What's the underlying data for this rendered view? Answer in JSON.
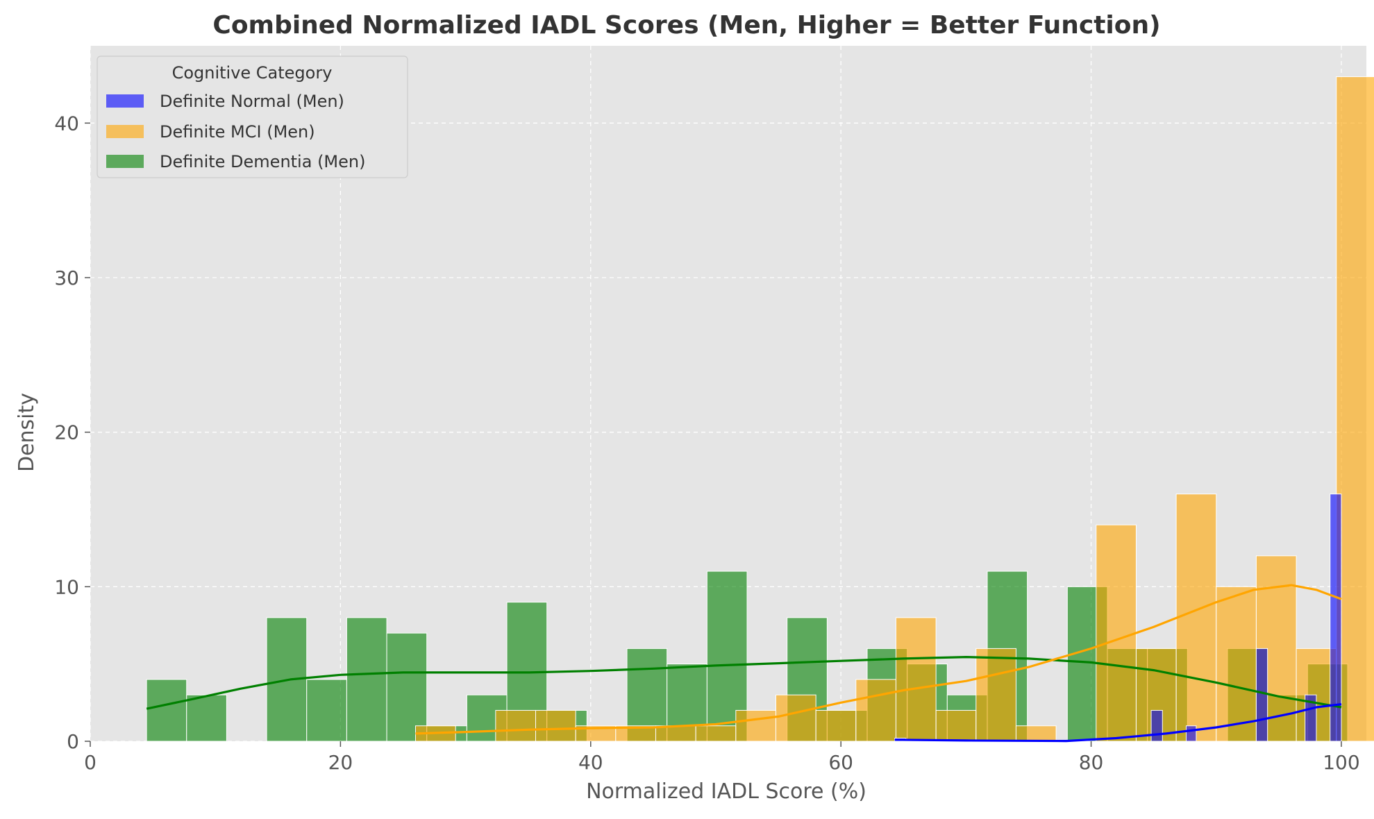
{
  "chart_data": {
    "type": "bar",
    "title": "Combined Normalized IADL Scores (Men, Higher = Better Function)",
    "xlabel": "Normalized IADL Score (%)",
    "ylabel": "Density",
    "xlim": [
      0,
      102
    ],
    "ylim": [
      0,
      45
    ],
    "xticks": [
      0,
      20,
      40,
      60,
      80,
      100
    ],
    "yticks": [
      0,
      10,
      20,
      30,
      40
    ],
    "grid": true,
    "legend": {
      "title": "Cognitive Category",
      "placement": "top-left"
    },
    "series": [
      {
        "name": "Definite Normal (Men)",
        "color": "#0000ff",
        "bins": [
          {
            "x0": 64.3,
            "x1": 65.2,
            "value": 0.2
          },
          {
            "x0": 84.8,
            "x1": 85.7,
            "value": 2
          },
          {
            "x0": 87.6,
            "x1": 88.4,
            "value": 1
          },
          {
            "x0": 93.2,
            "x1": 94.1,
            "value": 6
          },
          {
            "x0": 97.1,
            "x1": 98.0,
            "value": 3
          },
          {
            "x0": 99.1,
            "x1": 100.0,
            "value": 16
          }
        ],
        "kde": [
          [
            64.3,
            0.1
          ],
          [
            70,
            0.05
          ],
          [
            78,
            0.02
          ],
          [
            82,
            0.2
          ],
          [
            86,
            0.5
          ],
          [
            90,
            0.9
          ],
          [
            93,
            1.3
          ],
          [
            96,
            1.8
          ],
          [
            98,
            2.2
          ],
          [
            100,
            2.4
          ]
        ]
      },
      {
        "name": "Definite MCI (Men)",
        "color": "#ffa500",
        "bins": [
          {
            "x0": 26.0,
            "x1": 29.2,
            "value": 1
          },
          {
            "x0": 29.2,
            "x1": 32.4,
            "value": 0
          },
          {
            "x0": 32.4,
            "x1": 35.6,
            "value": 2
          },
          {
            "x0": 35.6,
            "x1": 38.8,
            "value": 2
          },
          {
            "x0": 38.8,
            "x1": 42.0,
            "value": 1
          },
          {
            "x0": 42.0,
            "x1": 45.2,
            "value": 1
          },
          {
            "x0": 45.2,
            "x1": 48.4,
            "value": 1
          },
          {
            "x0": 48.4,
            "x1": 51.6,
            "value": 1
          },
          {
            "x0": 51.6,
            "x1": 54.8,
            "value": 2
          },
          {
            "x0": 54.8,
            "x1": 58.0,
            "value": 3
          },
          {
            "x0": 58.0,
            "x1": 61.2,
            "value": 2
          },
          {
            "x0": 61.2,
            "x1": 64.4,
            "value": 4
          },
          {
            "x0": 64.4,
            "x1": 67.6,
            "value": 8
          },
          {
            "x0": 67.6,
            "x1": 70.8,
            "value": 2
          },
          {
            "x0": 70.8,
            "x1": 74.0,
            "value": 6
          },
          {
            "x0": 74.0,
            "x1": 77.2,
            "value": 1
          },
          {
            "x0": 77.2,
            "x1": 80.4,
            "value": 0
          },
          {
            "x0": 80.4,
            "x1": 83.6,
            "value": 14
          },
          {
            "x0": 83.6,
            "x1": 86.8,
            "value": 6
          },
          {
            "x0": 86.8,
            "x1": 90.0,
            "value": 16
          },
          {
            "x0": 90.0,
            "x1": 93.2,
            "value": 10
          },
          {
            "x0": 93.2,
            "x1": 96.4,
            "value": 12
          },
          {
            "x0": 96.4,
            "x1": 99.6,
            "value": 6
          },
          {
            "x0": 99.6,
            "x1": 102.8,
            "value": 43
          }
        ],
        "kde": [
          [
            26,
            0.5
          ],
          [
            30,
            0.6
          ],
          [
            35,
            0.75
          ],
          [
            40,
            0.85
          ],
          [
            45,
            0.9
          ],
          [
            50,
            1.1
          ],
          [
            55,
            1.6
          ],
          [
            60,
            2.5
          ],
          [
            65,
            3.3
          ],
          [
            70,
            3.9
          ],
          [
            75,
            4.8
          ],
          [
            80,
            6.0
          ],
          [
            85,
            7.4
          ],
          [
            90,
            9.0
          ],
          [
            93,
            9.8
          ],
          [
            96,
            10.1
          ],
          [
            98,
            9.8
          ],
          [
            100,
            9.2
          ]
        ]
      },
      {
        "name": "Definite Dementia (Men)",
        "color": "#008000",
        "bins": [
          {
            "x0": 4.5,
            "x1": 7.7,
            "value": 4
          },
          {
            "x0": 7.7,
            "x1": 10.9,
            "value": 3
          },
          {
            "x0": 10.9,
            "x1": 14.1,
            "value": 0
          },
          {
            "x0": 14.1,
            "x1": 17.3,
            "value": 8
          },
          {
            "x0": 17.3,
            "x1": 20.5,
            "value": 4
          },
          {
            "x0": 20.5,
            "x1": 23.7,
            "value": 8
          },
          {
            "x0": 23.7,
            "x1": 26.9,
            "value": 7
          },
          {
            "x0": 26.9,
            "x1": 30.1,
            "value": 1
          },
          {
            "x0": 30.1,
            "x1": 33.3,
            "value": 3
          },
          {
            "x0": 33.3,
            "x1": 36.5,
            "value": 9
          },
          {
            "x0": 36.5,
            "x1": 39.7,
            "value": 2
          },
          {
            "x0": 39.7,
            "x1": 42.9,
            "value": 0
          },
          {
            "x0": 42.9,
            "x1": 46.1,
            "value": 6
          },
          {
            "x0": 46.1,
            "x1": 49.3,
            "value": 5
          },
          {
            "x0": 49.3,
            "x1": 52.5,
            "value": 11
          },
          {
            "x0": 52.5,
            "x1": 55.7,
            "value": 0
          },
          {
            "x0": 55.7,
            "x1": 58.9,
            "value": 8
          },
          {
            "x0": 58.9,
            "x1": 62.1,
            "value": 2
          },
          {
            "x0": 62.1,
            "x1": 65.3,
            "value": 6
          },
          {
            "x0": 65.3,
            "x1": 68.5,
            "value": 5
          },
          {
            "x0": 68.5,
            "x1": 71.7,
            "value": 3
          },
          {
            "x0": 71.7,
            "x1": 74.9,
            "value": 11
          },
          {
            "x0": 74.9,
            "x1": 78.1,
            "value": 0
          },
          {
            "x0": 78.1,
            "x1": 81.3,
            "value": 10
          },
          {
            "x0": 81.3,
            "x1": 84.5,
            "value": 6
          },
          {
            "x0": 84.5,
            "x1": 87.7,
            "value": 6
          },
          {
            "x0": 87.7,
            "x1": 90.9,
            "value": 0
          },
          {
            "x0": 90.9,
            "x1": 94.1,
            "value": 6
          },
          {
            "x0": 94.1,
            "x1": 97.3,
            "value": 3
          },
          {
            "x0": 97.3,
            "x1": 100.5,
            "value": 5
          }
        ],
        "kde": [
          [
            4.5,
            2.1
          ],
          [
            8,
            2.7
          ],
          [
            12,
            3.4
          ],
          [
            16,
            4.0
          ],
          [
            20,
            4.3
          ],
          [
            25,
            4.45
          ],
          [
            30,
            4.45
          ],
          [
            35,
            4.45
          ],
          [
            40,
            4.55
          ],
          [
            45,
            4.7
          ],
          [
            50,
            4.9
          ],
          [
            55,
            5.05
          ],
          [
            60,
            5.2
          ],
          [
            65,
            5.35
          ],
          [
            70,
            5.45
          ],
          [
            75,
            5.35
          ],
          [
            80,
            5.1
          ],
          [
            85,
            4.6
          ],
          [
            90,
            3.8
          ],
          [
            95,
            2.9
          ],
          [
            100,
            2.2
          ]
        ]
      }
    ]
  }
}
